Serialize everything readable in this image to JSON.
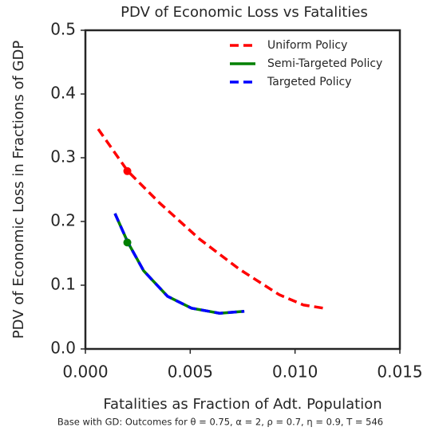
{
  "chart_data": {
    "type": "line",
    "title": "PDV of Economic Loss vs  Fatalities",
    "xlabel": "Fatalities as Fraction of Adt. Population",
    "ylabel": "PDV of Economic Loss in Fractions of GDP",
    "caption": "Base with GD: Outcomes for θ = 0.75,  α = 2, ρ = 0.7, η = 0.9,  T = 546",
    "xlim": [
      0,
      0.015
    ],
    "ylim": [
      0,
      0.5
    ],
    "xticks": [
      {
        "value": 0,
        "label": "0.000"
      },
      {
        "value": 0.005,
        "label": "0.005"
      },
      {
        "value": 0.01,
        "label": "0.010"
      },
      {
        "value": 0.015,
        "label": "0.015"
      }
    ],
    "yticks": [
      {
        "value": 0,
        "label": "0.0"
      },
      0.1,
      0.2,
      0.3,
      0.4,
      0.5
    ],
    "legend": "upper right",
    "series": [
      {
        "name": "Uniform Policy",
        "color": "#ff0000",
        "dash": "dashed",
        "x": [
          0.00061,
          0.00202,
          0.00354,
          0.00544,
          0.00735,
          0.00925,
          0.0104,
          0.01135
        ],
        "values": [
          0.345,
          0.279,
          0.229,
          0.1725,
          0.125,
          0.085,
          0.069,
          0.064
        ]
      },
      {
        "name": "Semi-Targeted Policy",
        "color": "#008000",
        "dash": "solid",
        "x": [
          0.00141,
          0.00202,
          0.00278,
          0.00392,
          0.00506,
          0.0064,
          0.00758
        ],
        "values": [
          0.2125,
          0.1675,
          0.1225,
          0.0825,
          0.064,
          0.056,
          0.059
        ]
      },
      {
        "name": "Targeted Policy",
        "color": "#0000ff",
        "dash": "dashed",
        "x": [
          0.00141,
          0.00202,
          0.00278,
          0.00392,
          0.00506,
          0.0064,
          0.00758
        ],
        "values": [
          0.2125,
          0.1675,
          0.1225,
          0.0825,
          0.064,
          0.056,
          0.059
        ]
      }
    ],
    "markers": [
      {
        "x": 0.002,
        "y": 0.279,
        "color": "#ff0000"
      },
      {
        "x": 0.002,
        "y": 0.167,
        "color": "#008000"
      }
    ]
  }
}
